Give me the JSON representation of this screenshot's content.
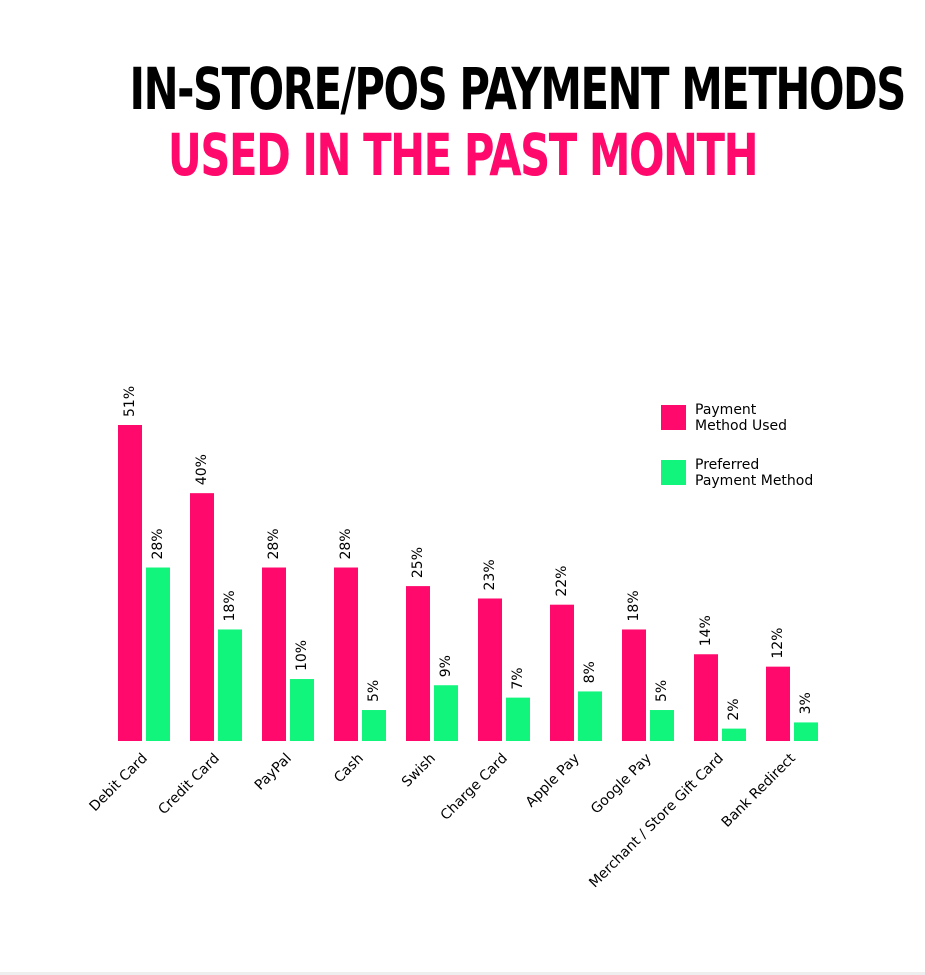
{
  "title": {
    "line1": "IN-STORE/POS PAYMENT METHODS",
    "line2": "USED IN THE PAST MONTH"
  },
  "colors": {
    "used": "#ff0a6c",
    "preferred": "#12f57c",
    "title_accent": "#ff0a6c"
  },
  "chart_data": {
    "type": "bar",
    "categories": [
      "Debit Card",
      "Credit Card",
      "PayPal",
      "Cash",
      "Swish",
      "Charge Card",
      "Apple Pay",
      "Google Pay",
      "Merchant / Store Gift Card",
      "Bank Redirect"
    ],
    "series": [
      {
        "name": "Payment Method Used",
        "values": [
          51,
          40,
          28,
          28,
          25,
          23,
          22,
          18,
          14,
          12
        ]
      },
      {
        "name": "Preferred Payment Method",
        "values": [
          28,
          18,
          10,
          5,
          9,
          7,
          8,
          5,
          2,
          3
        ]
      }
    ],
    "value_suffix": "%",
    "ylim": [
      0,
      51
    ],
    "legend": {
      "placement": "top-right",
      "entries": [
        {
          "line1": "Payment",
          "line2": "Method Used"
        },
        {
          "line1": "Preferred",
          "line2": "Payment Method"
        }
      ]
    },
    "grid": false
  }
}
